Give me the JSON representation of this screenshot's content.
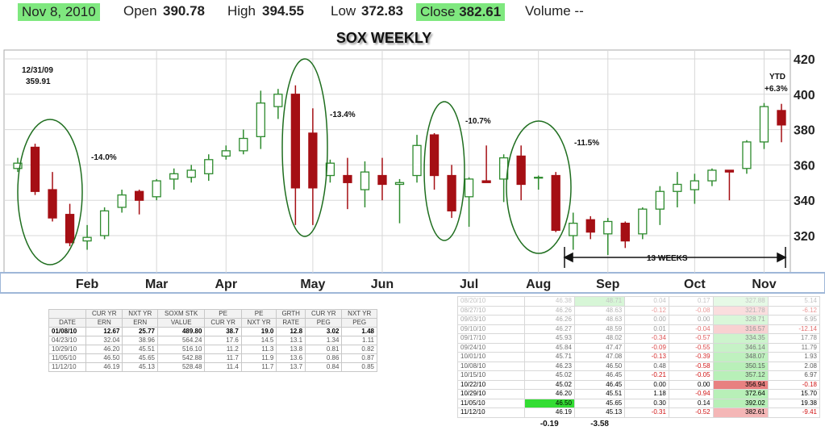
{
  "header": {
    "date": "Nov 8, 2010",
    "open_label": "Open",
    "open": "390.78",
    "high_label": "High",
    "high": "394.55",
    "low_label": "Low",
    "low": "372.83",
    "close_label": "Close",
    "close": "382.61",
    "volume": "Volume --"
  },
  "chart_data": {
    "type": "candlestick",
    "title": "SOX WEEKLY",
    "categories": [
      null,
      null,
      null,
      null,
      "Feb",
      null,
      null,
      null,
      "Mar",
      null,
      null,
      null,
      "Apr",
      null,
      null,
      null,
      null,
      "May",
      null,
      null,
      null,
      "Jun",
      null,
      null,
      null,
      null,
      "Jul",
      null,
      null,
      null,
      "Aug",
      null,
      null,
      null,
      "Sep",
      null,
      null,
      null,
      null,
      "Oct",
      null,
      null,
      null,
      "Nov",
      null
    ],
    "open": [
      358,
      370,
      346,
      332,
      317,
      320,
      336,
      345,
      342,
      352,
      353,
      355,
      365,
      368,
      376,
      393,
      400,
      378,
      354,
      354,
      346,
      354,
      349,
      354,
      377,
      354,
      342,
      351,
      352,
      365,
      353,
      354,
      320,
      329,
      321,
      327,
      321,
      335,
      345,
      346,
      351,
      357,
      358,
      373,
      390.78
    ],
    "high": [
      364,
      372,
      356,
      338,
      326,
      336,
      346,
      346,
      352,
      358,
      360,
      366,
      371,
      380,
      402,
      403,
      405,
      392,
      363,
      364,
      362,
      364,
      352,
      377,
      378,
      360,
      353,
      371,
      366,
      371,
      354,
      356,
      333,
      331,
      330,
      328,
      336,
      348,
      356,
      355,
      358,
      357,
      374,
      395,
      394.55
    ],
    "low": [
      356,
      343,
      328,
      314,
      312,
      318,
      333,
      332,
      340,
      346,
      350,
      351,
      363,
      366,
      369,
      386,
      326,
      326,
      350,
      335,
      336,
      340,
      327,
      350,
      346,
      330,
      325,
      350,
      339,
      340,
      346,
      322,
      312,
      318,
      309,
      313,
      318,
      326,
      336,
      338,
      348,
      340,
      355,
      369,
      372.83
    ],
    "close": [
      361,
      345,
      330,
      316,
      319,
      334,
      343,
      340,
      351,
      355,
      357,
      363,
      368,
      375,
      395,
      400,
      347,
      347,
      361,
      350,
      356,
      349,
      350,
      371,
      354,
      334,
      352,
      350,
      364,
      349,
      353,
      323,
      327,
      322,
      328,
      317,
      335,
      345,
      349,
      351,
      357,
      356,
      373,
      393,
      382.61
    ],
    "ylim": [
      299,
      425
    ],
    "yticks": [
      320,
      340,
      360,
      380,
      400,
      420
    ],
    "grid": true,
    "up_color": "#2e8b2e",
    "down_color": "#a50f14",
    "annotations": [
      "12/31/09",
      "359.91",
      "-14.0%",
      "-13.4%",
      "-10.7%",
      "-11.5%",
      "YTD",
      "+6.3%",
      "13 WEEKS"
    ]
  },
  "ratio_table": {
    "header_top": [
      "CUR YR",
      "NXT YR",
      "SOXM STK",
      "PE",
      "PE",
      "GRTH",
      "CUR YR",
      "NXT YR"
    ],
    "header": [
      "DATE",
      "ERN",
      "ERN",
      "VALUE",
      "CUR YR",
      "NXT YR",
      "RATE",
      "PEG",
      "PEG"
    ],
    "rows": [
      [
        "01/08/10",
        "12.67",
        "25.77",
        "489.80",
        "38.7",
        "19.0",
        "12.8",
        "3.02",
        "1.48"
      ],
      [
        "04/23/10",
        "32.04",
        "38.96",
        "564.24",
        "17.6",
        "14.5",
        "13.1",
        "1.34",
        "1.11"
      ],
      [
        "10/29/10",
        "46.20",
        "45.51",
        "516.10",
        "11.2",
        "11.3",
        "13.8",
        "0.81",
        "0.82"
      ],
      [
        "11/05/10",
        "46.50",
        "45.65",
        "542.88",
        "11.7",
        "11.9",
        "13.6",
        "0.86",
        "0.87"
      ],
      [
        "11/12/10",
        "46.19",
        "45.13",
        "528.48",
        "11.4",
        "11.7",
        "13.7",
        "0.84",
        "0.85"
      ]
    ]
  },
  "weekly_table": {
    "rows": [
      [
        "08/20/10",
        "46.38",
        "48.71",
        "0.04",
        "0.17",
        "327.88",
        "5.14"
      ],
      [
        "08/27/10",
        "46.26",
        "48.63",
        "-0.12",
        "-0.08",
        "321.78",
        "-6.12"
      ],
      [
        "09/03/10",
        "46.26",
        "48.63",
        "0.00",
        "0.00",
        "328.71",
        "6.95"
      ],
      [
        "09/10/10",
        "46.27",
        "48.59",
        "0.01",
        "-0.04",
        "316.57",
        "-12.14"
      ],
      [
        "09/17/10",
        "45.93",
        "48.02",
        "-0.34",
        "-0.57",
        "334.35",
        "17.78"
      ],
      [
        "09/24/10",
        "45.84",
        "47.47",
        "-0.09",
        "-0.55",
        "346.14",
        "11.79"
      ],
      [
        "10/01/10",
        "45.71",
        "47.08",
        "-0.13",
        "-0.39",
        "348.07",
        "1.93"
      ],
      [
        "10/08/10",
        "46.23",
        "46.50",
        "0.48",
        "-0.58",
        "350.15",
        "2.08"
      ],
      [
        "10/15/10",
        "45.02",
        "46.45",
        "-0.21",
        "-0.05",
        "357.12",
        "6.97"
      ],
      [
        "10/22/10",
        "45.02",
        "46.45",
        "0.00",
        "0.00",
        "356.94",
        "-0.18"
      ],
      [
        "10/29/10",
        "46.20",
        "45.51",
        "1.18",
        "-0.94",
        "372.64",
        "15.70"
      ],
      [
        "11/05/10",
        "46.50",
        "45.65",
        "0.30",
        "0.14",
        "392.02",
        "19.38"
      ],
      [
        "11/12/10",
        "46.19",
        "45.13",
        "-0.31",
        "-0.52",
        "382.61",
        "-9.41"
      ]
    ],
    "footer": [
      "-0.19",
      "-3.58"
    ]
  }
}
